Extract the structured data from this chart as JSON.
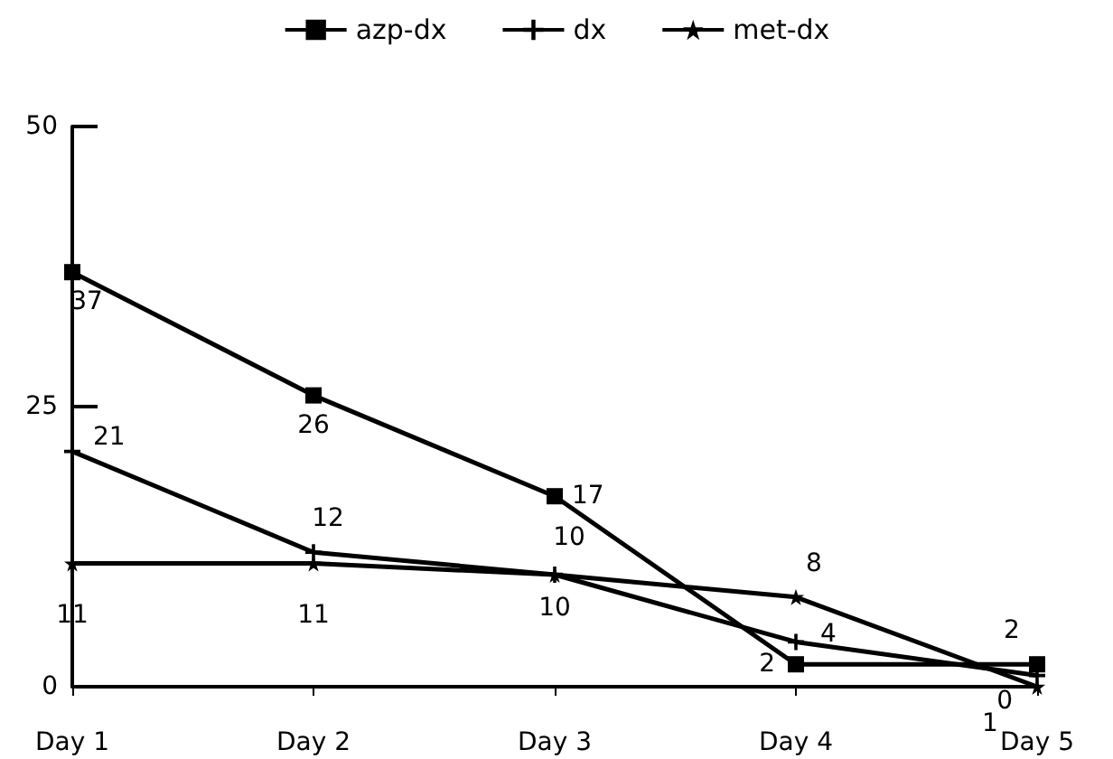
{
  "chart_data": {
    "type": "line",
    "categories": [
      "Day 1",
      "Day 2",
      "Day 3",
      "Day 4",
      "Day 5"
    ],
    "series": [
      {
        "name": "azp-dx",
        "color": "#000000",
        "marker": "square",
        "values": [
          37,
          26,
          17,
          2,
          2
        ]
      },
      {
        "name": "dx",
        "color": "#000000",
        "marker": "cross",
        "values": [
          21,
          12,
          10,
          4,
          1
        ]
      },
      {
        "name": "met-dx",
        "color": "#000000",
        "marker": "star",
        "values": [
          11,
          11,
          10,
          8,
          0
        ]
      }
    ],
    "ylim": [
      0,
      50
    ],
    "yticks": [
      0,
      25,
      50
    ],
    "grid": false,
    "legend": "top",
    "data_labels": true,
    "line_style": "solid"
  }
}
